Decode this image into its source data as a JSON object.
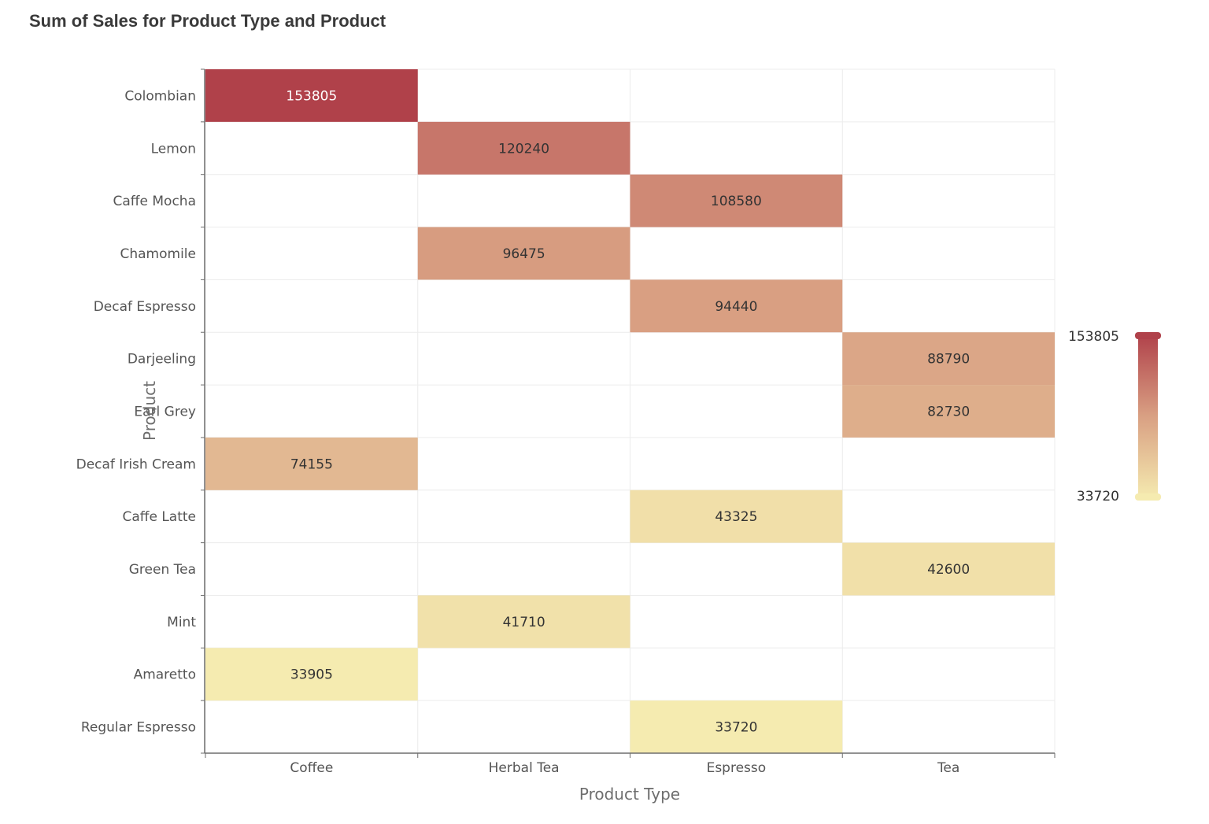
{
  "chart_data": {
    "type": "heatmap",
    "title": "Sum of Sales for Product Type and Product",
    "xlabel": "Product Type",
    "ylabel": "Product",
    "x_categories": [
      "Coffee",
      "Herbal Tea",
      "Espresso",
      "Tea"
    ],
    "y_categories": [
      "Colombian",
      "Lemon",
      "Caffe Mocha",
      "Chamomile",
      "Decaf Espresso",
      "Darjeeling",
      "Earl Grey",
      "Decaf Irish Cream",
      "Caffe Latte",
      "Green Tea",
      "Mint",
      "Amaretto",
      "Regular Espresso"
    ],
    "cells": [
      {
        "x": "Coffee",
        "y": "Colombian",
        "value": 153805
      },
      {
        "x": "Herbal Tea",
        "y": "Lemon",
        "value": 120240
      },
      {
        "x": "Espresso",
        "y": "Caffe Mocha",
        "value": 108580
      },
      {
        "x": "Herbal Tea",
        "y": "Chamomile",
        "value": 96475
      },
      {
        "x": "Espresso",
        "y": "Decaf Espresso",
        "value": 94440
      },
      {
        "x": "Tea",
        "y": "Darjeeling",
        "value": 88790
      },
      {
        "x": "Tea",
        "y": "Earl Grey",
        "value": 82730
      },
      {
        "x": "Coffee",
        "y": "Decaf Irish Cream",
        "value": 74155
      },
      {
        "x": "Espresso",
        "y": "Caffe Latte",
        "value": 43325
      },
      {
        "x": "Tea",
        "y": "Green Tea",
        "value": 42600
      },
      {
        "x": "Herbal Tea",
        "y": "Mint",
        "value": 41710
      },
      {
        "x": "Coffee",
        "y": "Amaretto",
        "value": 33905
      },
      {
        "x": "Espresso",
        "y": "Regular Espresso",
        "value": 33720
      }
    ],
    "legend": {
      "type": "continuous",
      "placement": "right",
      "max": 153805,
      "min": 33720
    },
    "colors": {
      "high": "#b0414a",
      "mid": "#d9a083",
      "low": "#f5ebb0"
    },
    "grid": true
  }
}
